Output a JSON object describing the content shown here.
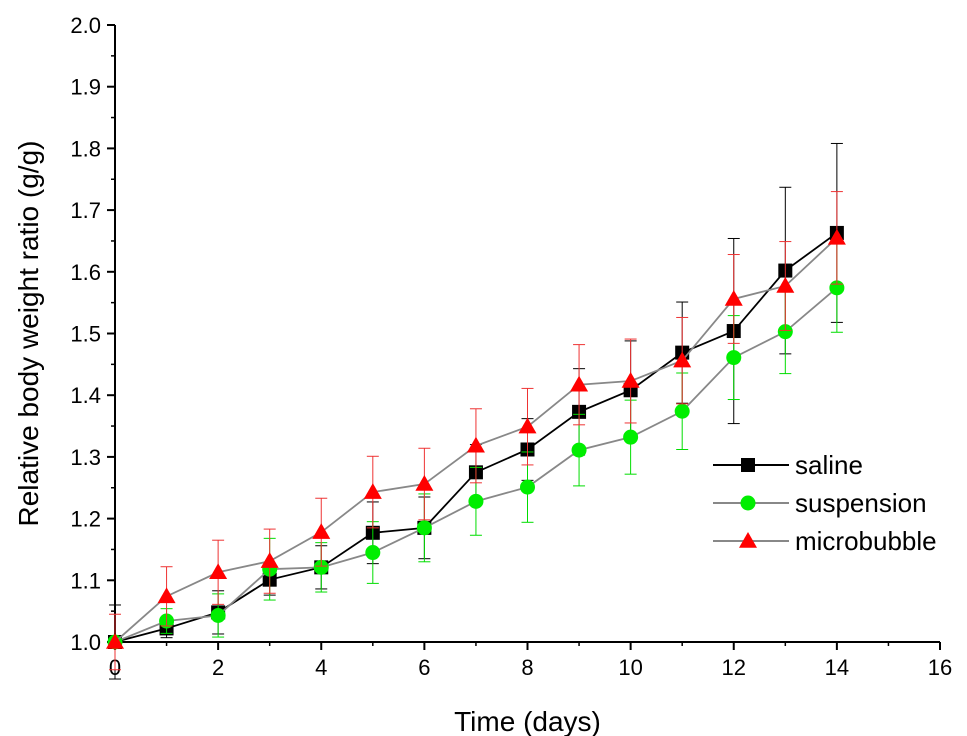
{
  "chart_data": {
    "type": "line",
    "title": "",
    "xlabel": "Time (days)",
    "ylabel": "Relative body weight  ratio (g/g)",
    "xlim": [
      0,
      16
    ],
    "ylim": [
      1.0,
      2.0
    ],
    "x_ticks": [
      "0",
      "2",
      "4",
      "6",
      "8",
      "10",
      "12",
      "14",
      "16"
    ],
    "y_ticks": [
      "1.0",
      "1.1",
      "1.2",
      "1.3",
      "1.4",
      "1.5",
      "1.6",
      "1.7",
      "1.8",
      "1.9",
      "2.0"
    ],
    "grid": false,
    "legend_position": "right",
    "x": [
      0,
      1,
      2,
      3,
      4,
      5,
      6,
      7,
      8,
      9,
      10,
      11,
      12,
      13,
      14
    ],
    "series": [
      {
        "name": "saline",
        "marker": "square",
        "marker_color": "#000000",
        "line_color": "#000000",
        "error_color": "#000000",
        "values": [
          1.0,
          1.022,
          1.048,
          1.101,
          1.121,
          1.177,
          1.185,
          1.275,
          1.312,
          1.373,
          1.408,
          1.469,
          1.504,
          1.602,
          1.663
        ],
        "errors": [
          0.06,
          0.015,
          0.035,
          0.025,
          0.035,
          0.05,
          0.05,
          0.045,
          0.05,
          0.07,
          0.08,
          0.082,
          0.15,
          0.135,
          0.145
        ]
      },
      {
        "name": "suspension",
        "marker": "circle",
        "marker_color": "#00ee00",
        "line_color": "#888888",
        "error_color": "#00dd00",
        "values": [
          1.0,
          1.034,
          1.043,
          1.118,
          1.121,
          1.145,
          1.185,
          1.228,
          1.251,
          1.311,
          1.332,
          1.374,
          1.461,
          1.503,
          1.574
        ],
        "errors": [
          0.0,
          0.02,
          0.035,
          0.05,
          0.04,
          0.05,
          0.055,
          0.055,
          0.057,
          0.058,
          0.06,
          0.062,
          0.068,
          0.068,
          0.072
        ]
      },
      {
        "name": "microbubble",
        "marker": "triangle",
        "marker_color": "#ff0000",
        "line_color": "#888888",
        "error_color": "#ee3333",
        "values": [
          1.0,
          1.074,
          1.113,
          1.131,
          1.178,
          1.243,
          1.256,
          1.318,
          1.349,
          1.417,
          1.423,
          1.456,
          1.556,
          1.577,
          1.655
        ],
        "errors": [
          0.045,
          0.048,
          0.052,
          0.052,
          0.055,
          0.058,
          0.058,
          0.06,
          0.062,
          0.065,
          0.068,
          0.07,
          0.072,
          0.072,
          0.075
        ]
      }
    ]
  }
}
